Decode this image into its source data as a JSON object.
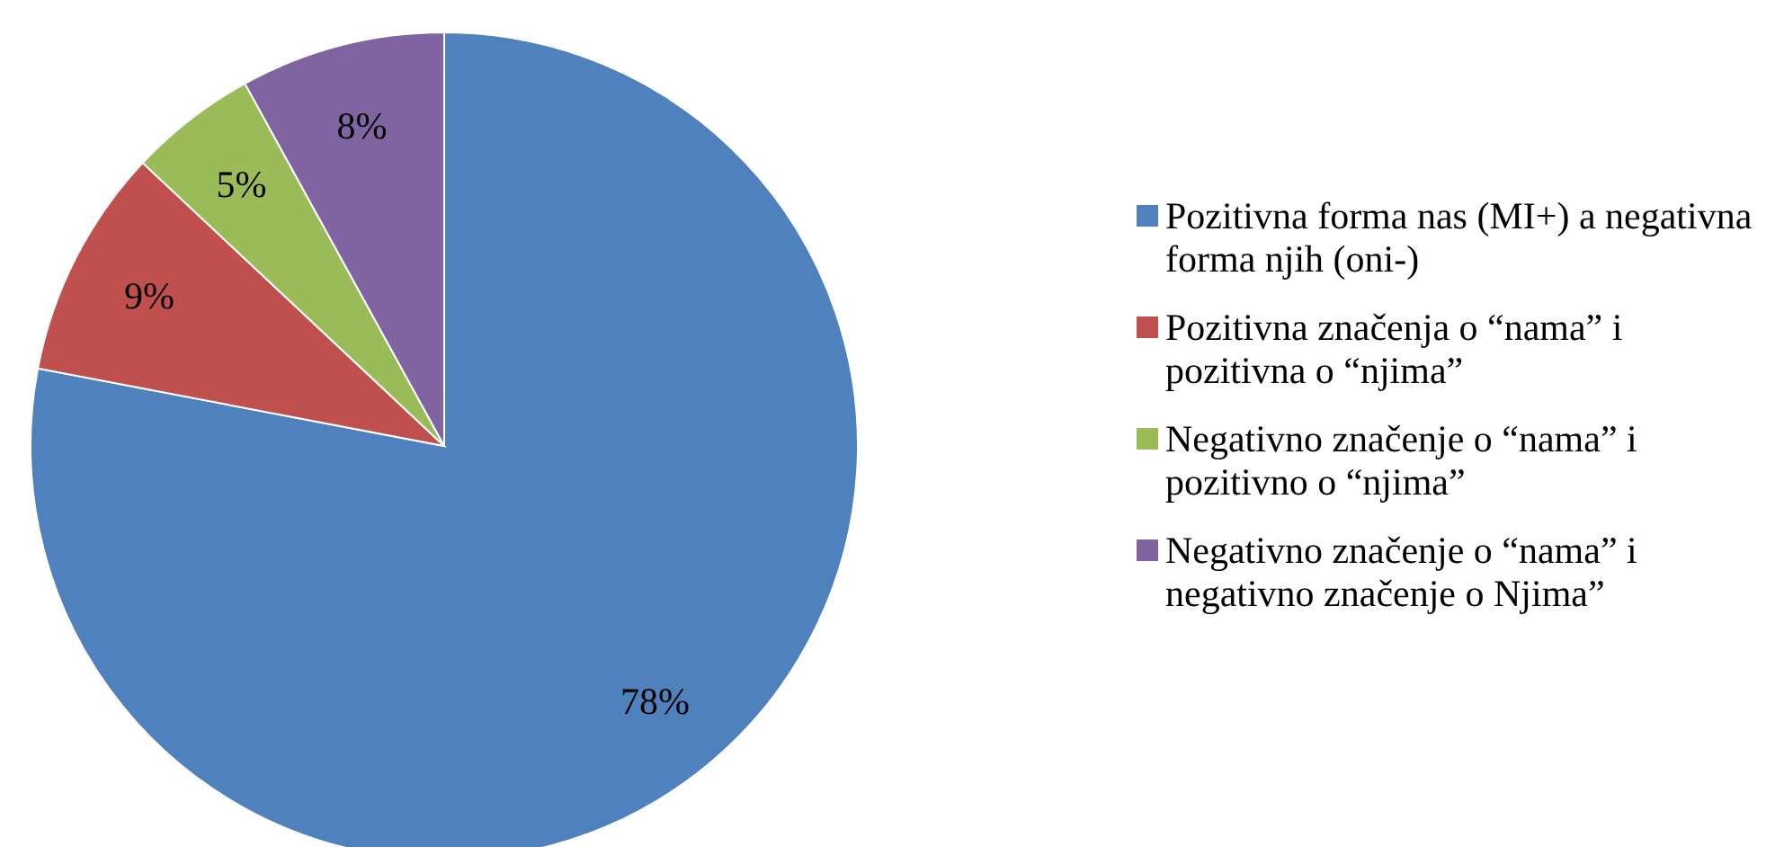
{
  "chart_data": {
    "type": "pie",
    "categories": [
      "Pozitivna forma nas (MI+) a negativna forma njih (oni-)",
      "Pozitivna značenja o “nama” i pozitivna o “njima”",
      "Negativno značenje o “nama” i pozitivno o “njima”",
      "Negativno značenje o “nama” i negativno značenje o Njima”"
    ],
    "values": [
      78,
      9,
      5,
      8
    ],
    "colors": [
      "#4f81bd",
      "#c0504d",
      "#9bbb59",
      "#8064a2"
    ],
    "value_labels": [
      "78%",
      "9%",
      "5%",
      "8%"
    ],
    "legend": "right"
  }
}
